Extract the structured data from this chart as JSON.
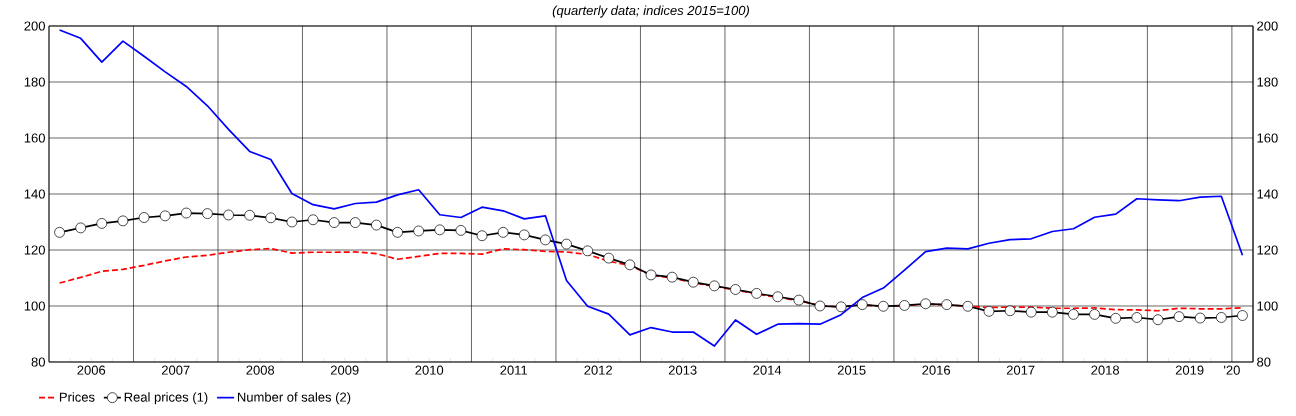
{
  "chart_data": {
    "type": "line",
    "subtitle": "(quarterly data; indices 2015=100)",
    "x": [
      2006.125,
      2006.375,
      2006.625,
      2006.875,
      2007.125,
      2007.375,
      2007.625,
      2007.875,
      2008.125,
      2008.375,
      2008.625,
      2008.875,
      2009.125,
      2009.375,
      2009.625,
      2009.875,
      2010.125,
      2010.375,
      2010.625,
      2010.875,
      2011.125,
      2011.375,
      2011.625,
      2011.875,
      2012.125,
      2012.375,
      2012.625,
      2012.875,
      2013.125,
      2013.375,
      2013.625,
      2013.875,
      2014.125,
      2014.375,
      2014.625,
      2014.875,
      2015.125,
      2015.375,
      2015.625,
      2015.875,
      2016.125,
      2016.375,
      2016.625,
      2016.875,
      2017.125,
      2017.375,
      2017.625,
      2017.875,
      2018.125,
      2018.375,
      2018.625,
      2018.875,
      2019.125,
      2019.375,
      2019.625,
      2019.875,
      2020.125
    ],
    "series": [
      {
        "name": "Prices",
        "color": "#ff0000",
        "line_style": "dashed",
        "marker": "none",
        "values": [
          108.2,
          110.2,
          112.4,
          113.1,
          114.5,
          116.1,
          117.5,
          118.1,
          119.2,
          120.1,
          120.5,
          118.9,
          119.2,
          119.2,
          119.3,
          118.7,
          116.7,
          117.7,
          118.8,
          118.8,
          118.5,
          120.4,
          120.1,
          119.5,
          119.3,
          118.4,
          116.0,
          114.5,
          111.0,
          110.0,
          108.3,
          107.0,
          105.7,
          104.3,
          103.1,
          101.9,
          100.2,
          99.6,
          100.3,
          99.9,
          100.1,
          100.7,
          100.4,
          99.9,
          99.5,
          99.6,
          99.6,
          99.2,
          99.2,
          99.3,
          98.7,
          98.6,
          98.3,
          99.2,
          99.0,
          99.0,
          99.4
        ]
      },
      {
        "name": "Real prices (1)",
        "color": "#000000",
        "line_style": "solid",
        "marker": "circle",
        "values": [
          126.3,
          127.9,
          129.5,
          130.4,
          131.6,
          132.2,
          133.2,
          133.0,
          132.5,
          132.4,
          131.5,
          130.0,
          130.8,
          129.8,
          129.8,
          128.9,
          126.3,
          126.8,
          127.2,
          127.0,
          125.1,
          126.3,
          125.4,
          123.6,
          122.1,
          119.7,
          117.1,
          114.7,
          111.1,
          110.3,
          108.5,
          107.2,
          105.9,
          104.5,
          103.3,
          102.1,
          100.0,
          99.7,
          100.5,
          99.9,
          100.2,
          100.8,
          100.5,
          99.9,
          98.1,
          98.3,
          97.8,
          97.8,
          97.0,
          97.0,
          95.6,
          95.9,
          95.1,
          96.2,
          95.7,
          95.9,
          96.6
        ]
      },
      {
        "name": "Number of sales (2)",
        "color": "#0000ff",
        "line_style": "solid",
        "marker": "none",
        "values": [
          198.6,
          195.6,
          187.1,
          194.6,
          189.2,
          183.6,
          178.4,
          171.5,
          163.1,
          155.2,
          152.3,
          140.2,
          136.2,
          134.7,
          136.6,
          137.1,
          139.7,
          141.5,
          132.6,
          131.6,
          135.3,
          134.0,
          131.1,
          132.2,
          109.1,
          99.9,
          97.1,
          89.7,
          92.3,
          90.7,
          90.7,
          85.7,
          95.0,
          89.9,
          93.5,
          93.7,
          93.5,
          96.9,
          103.0,
          106.4,
          112.8,
          119.4,
          120.7,
          120.4,
          122.4,
          123.7,
          124.0,
          126.6,
          127.6,
          131.7,
          132.8,
          138.3,
          137.9,
          137.6,
          138.9,
          139.2,
          118.1
        ]
      }
    ],
    "xlim": [
      2006,
      2020.25
    ],
    "xticks": [
      {
        "value": 2006,
        "label": null
      },
      {
        "value": 2007,
        "label": null
      },
      {
        "value": 2008,
        "label": null
      },
      {
        "value": 2009,
        "label": null
      },
      {
        "value": 2010,
        "label": null
      },
      {
        "value": 2011,
        "label": null
      },
      {
        "value": 2012,
        "label": null
      },
      {
        "value": 2013,
        "label": null
      },
      {
        "value": 2014,
        "label": null
      },
      {
        "value": 2015,
        "label": null
      },
      {
        "value": 2016,
        "label": null
      },
      {
        "value": 2017,
        "label": null
      },
      {
        "value": 2018,
        "label": null
      },
      {
        "value": 2019,
        "label": null
      },
      {
        "value": 2020,
        "label": null
      },
      {
        "value": 2006.5,
        "label": "2006"
      },
      {
        "value": 2007.5,
        "label": "2007"
      },
      {
        "value": 2008.5,
        "label": "2008"
      },
      {
        "value": 2009.5,
        "label": "2009"
      },
      {
        "value": 2010.5,
        "label": "2010"
      },
      {
        "value": 2011.5,
        "label": "2011"
      },
      {
        "value": 2012.5,
        "label": "2012"
      },
      {
        "value": 2013.5,
        "label": "2013"
      },
      {
        "value": 2014.5,
        "label": "2014"
      },
      {
        "value": 2015.5,
        "label": "2015"
      },
      {
        "value": 2016.5,
        "label": "2016"
      },
      {
        "value": 2017.5,
        "label": "2017"
      },
      {
        "value": 2018.5,
        "label": "2018"
      },
      {
        "value": 2019.5,
        "label": "2019"
      },
      {
        "value": 2020,
        "label": "'20"
      }
    ],
    "ylim": [
      80,
      200
    ],
    "yticks": [
      80,
      100,
      120,
      140,
      160,
      180,
      200
    ],
    "y2lim": [
      80,
      200
    ],
    "y2ticks": [
      80,
      100,
      120,
      140,
      160,
      180,
      200
    ],
    "grid": true,
    "legend": "bottom left"
  }
}
